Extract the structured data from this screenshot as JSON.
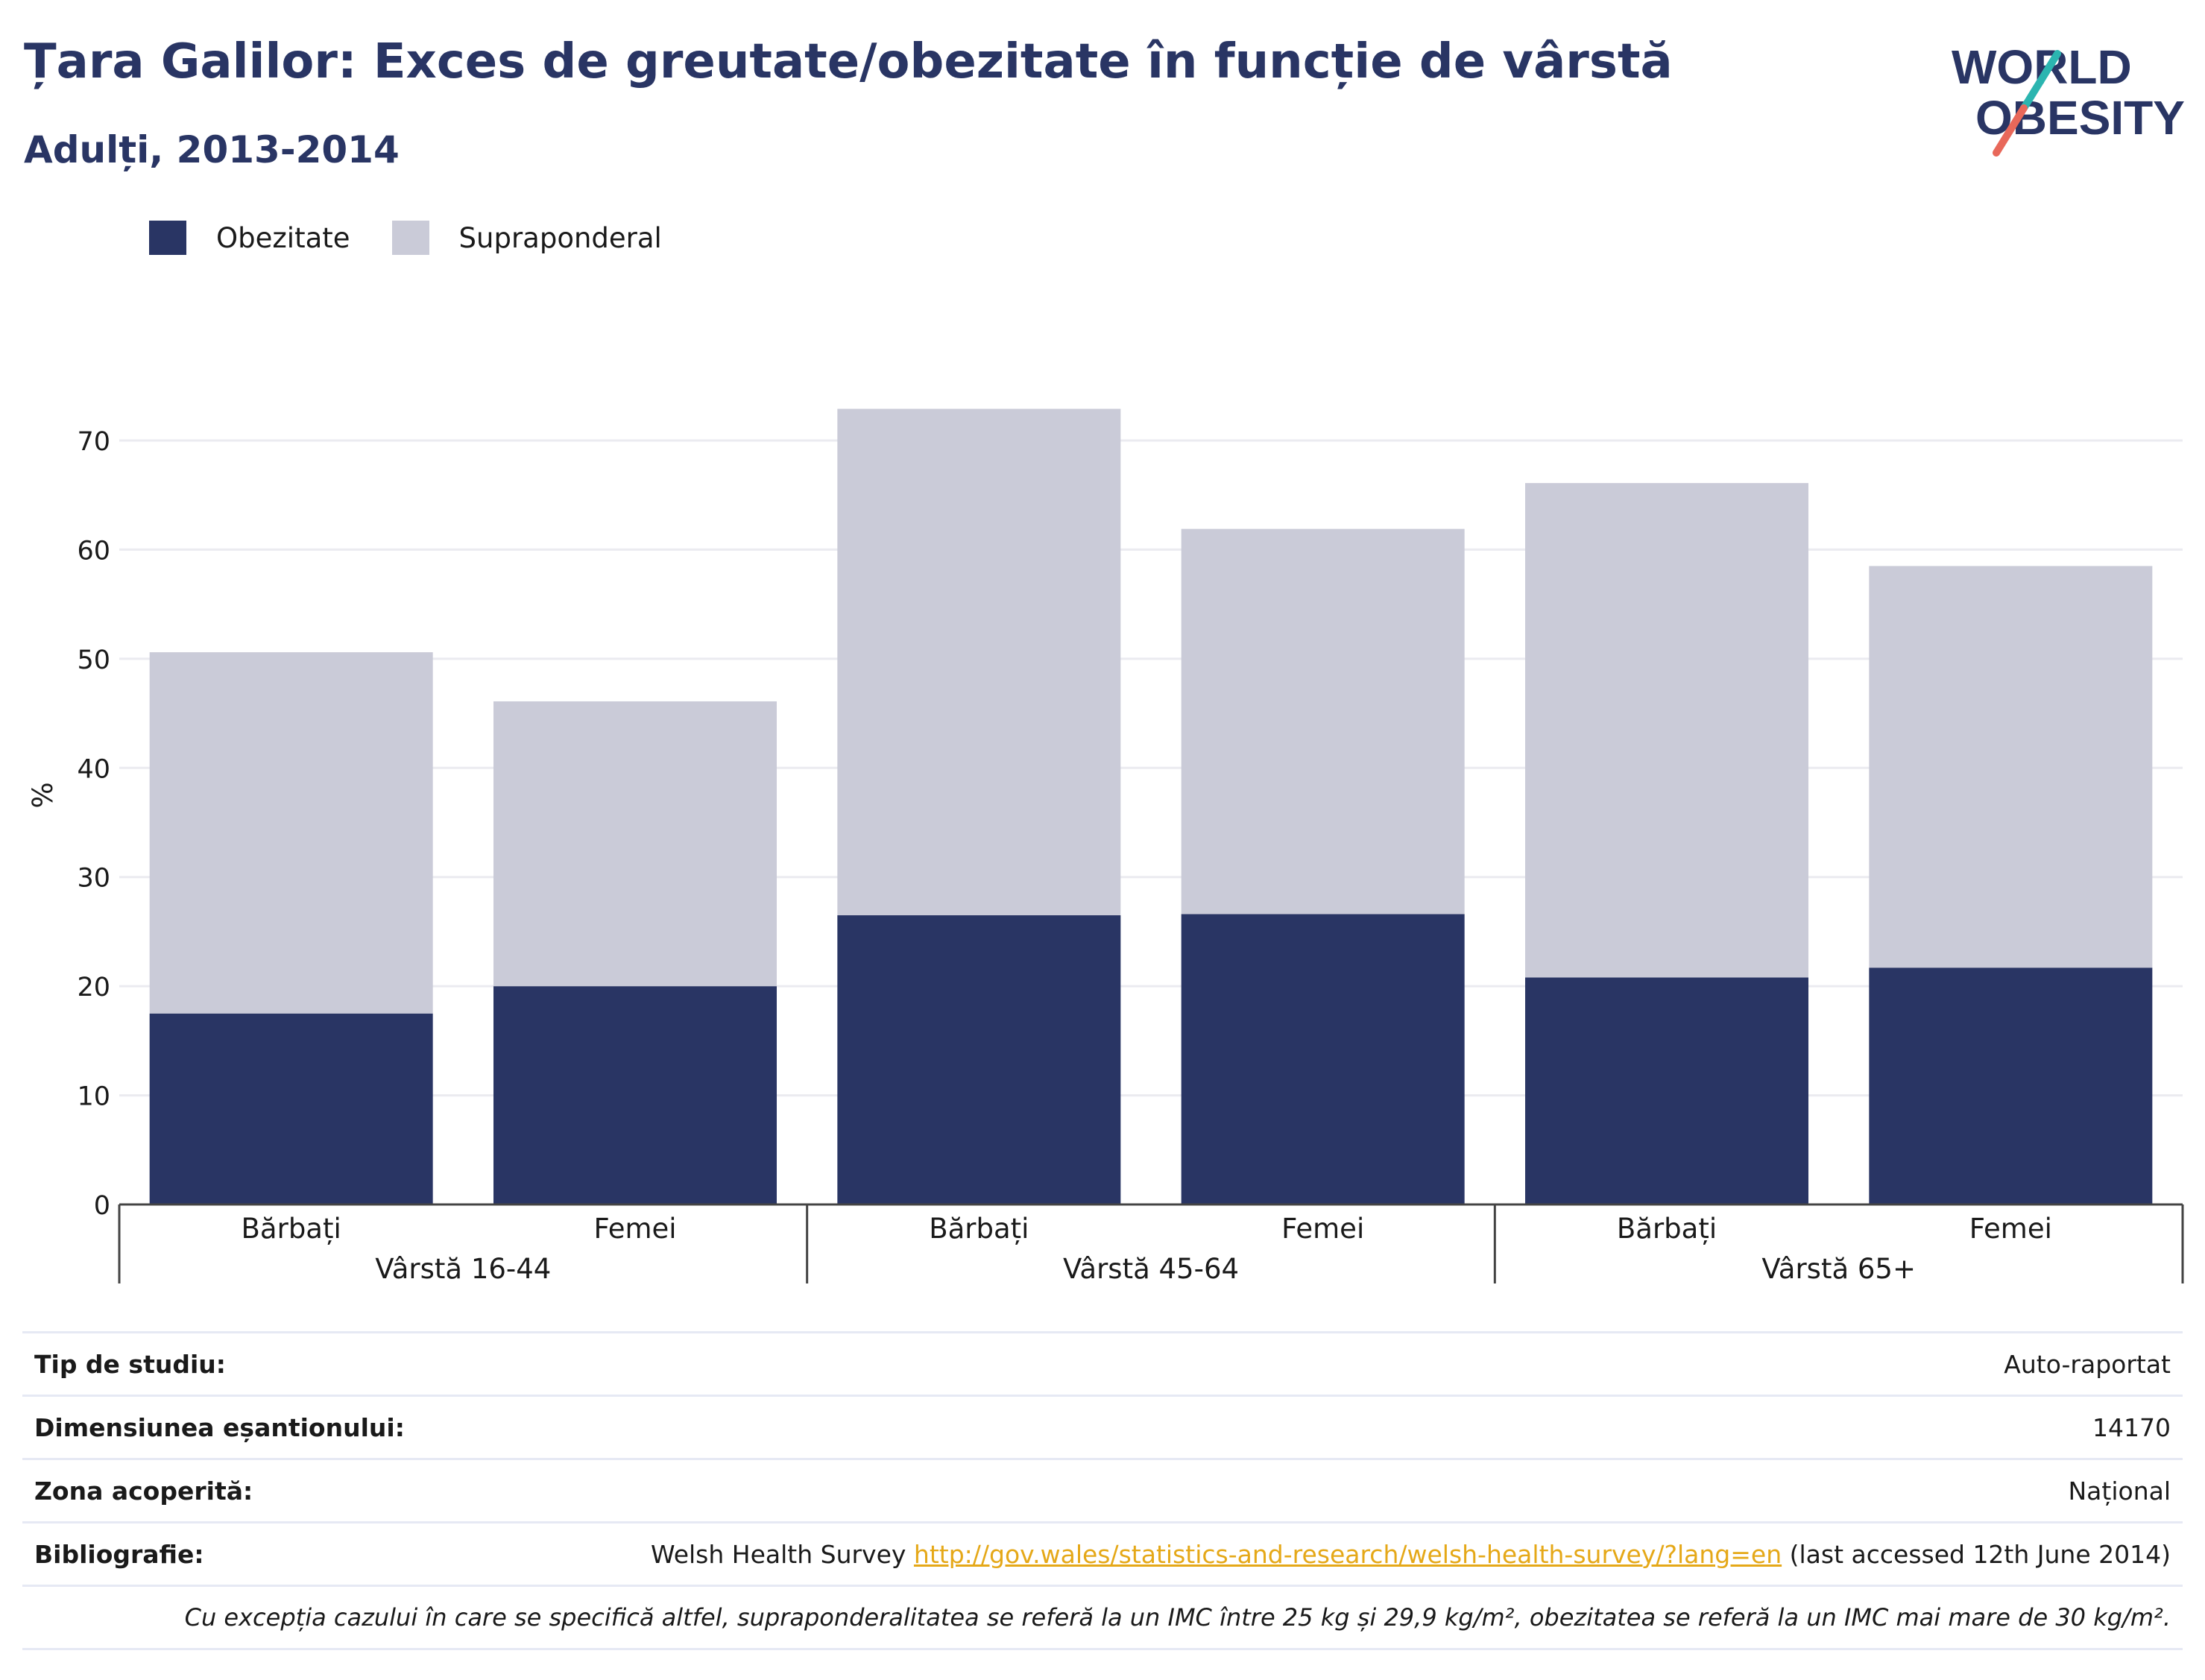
{
  "header": {
    "title": "Țara Galilor: Exces de greutate/obezitate în funcție de vârstă",
    "subtitle": "Adulți, 2013-2014"
  },
  "logo": {
    "line1": "WORLD",
    "line2": "OBESITY",
    "colors": {
      "text": "#293564",
      "slash_top": "#2bb5b0",
      "slash_bottom": "#e8685a"
    }
  },
  "legend": [
    {
      "label": "Obezitate",
      "color": "#293564"
    },
    {
      "label": "Supraponderal",
      "color": "#cacbd8"
    }
  ],
  "chart_data": {
    "type": "bar",
    "stacked": true,
    "ylabel": "%",
    "ylim": [
      0,
      75
    ],
    "yticks": [
      0,
      10,
      20,
      30,
      40,
      50,
      60,
      70
    ],
    "grid": true,
    "legend_position": "top-left",
    "groups": [
      {
        "label": "Vârstă 16-44",
        "categories": [
          "Bărbați",
          "Femei"
        ]
      },
      {
        "label": "Vârstă 45-64",
        "categories": [
          "Bărbați",
          "Femei"
        ]
      },
      {
        "label": "Vârstă 65+",
        "categories": [
          "Bărbați",
          "Femei"
        ]
      }
    ],
    "series": [
      {
        "name": "Obezitate",
        "color": "#293564",
        "values": [
          17.5,
          20,
          26.5,
          26.6,
          20.8,
          21.7
        ]
      },
      {
        "name": "Supraponderal",
        "color": "#cacbd8",
        "values": [
          33.1,
          26.1,
          46.4,
          35.3,
          45.3,
          36.8
        ]
      }
    ]
  },
  "info": {
    "rows": [
      {
        "key": "Tip de studiu:",
        "value": "Auto-raportat"
      },
      {
        "key": "Dimensiunea eșantionului:",
        "value": "14170"
      },
      {
        "key": "Zona acoperită:",
        "value": "Național"
      }
    ],
    "bibliography": {
      "key": "Bibliografie:",
      "prefix": "Welsh Health Survey ",
      "link": "http://gov.wales/statistics-and-research/welsh-health-survey/?lang=en",
      "suffix": " (last accessed 12th June 2014)"
    },
    "note": "Cu excepția cazului în care se specifică altfel, supraponderalitatea se referă la un IMC între 25 kg și 29,9 kg/m², obezitatea se referă la un IMC mai mare de 30 kg/m²."
  }
}
